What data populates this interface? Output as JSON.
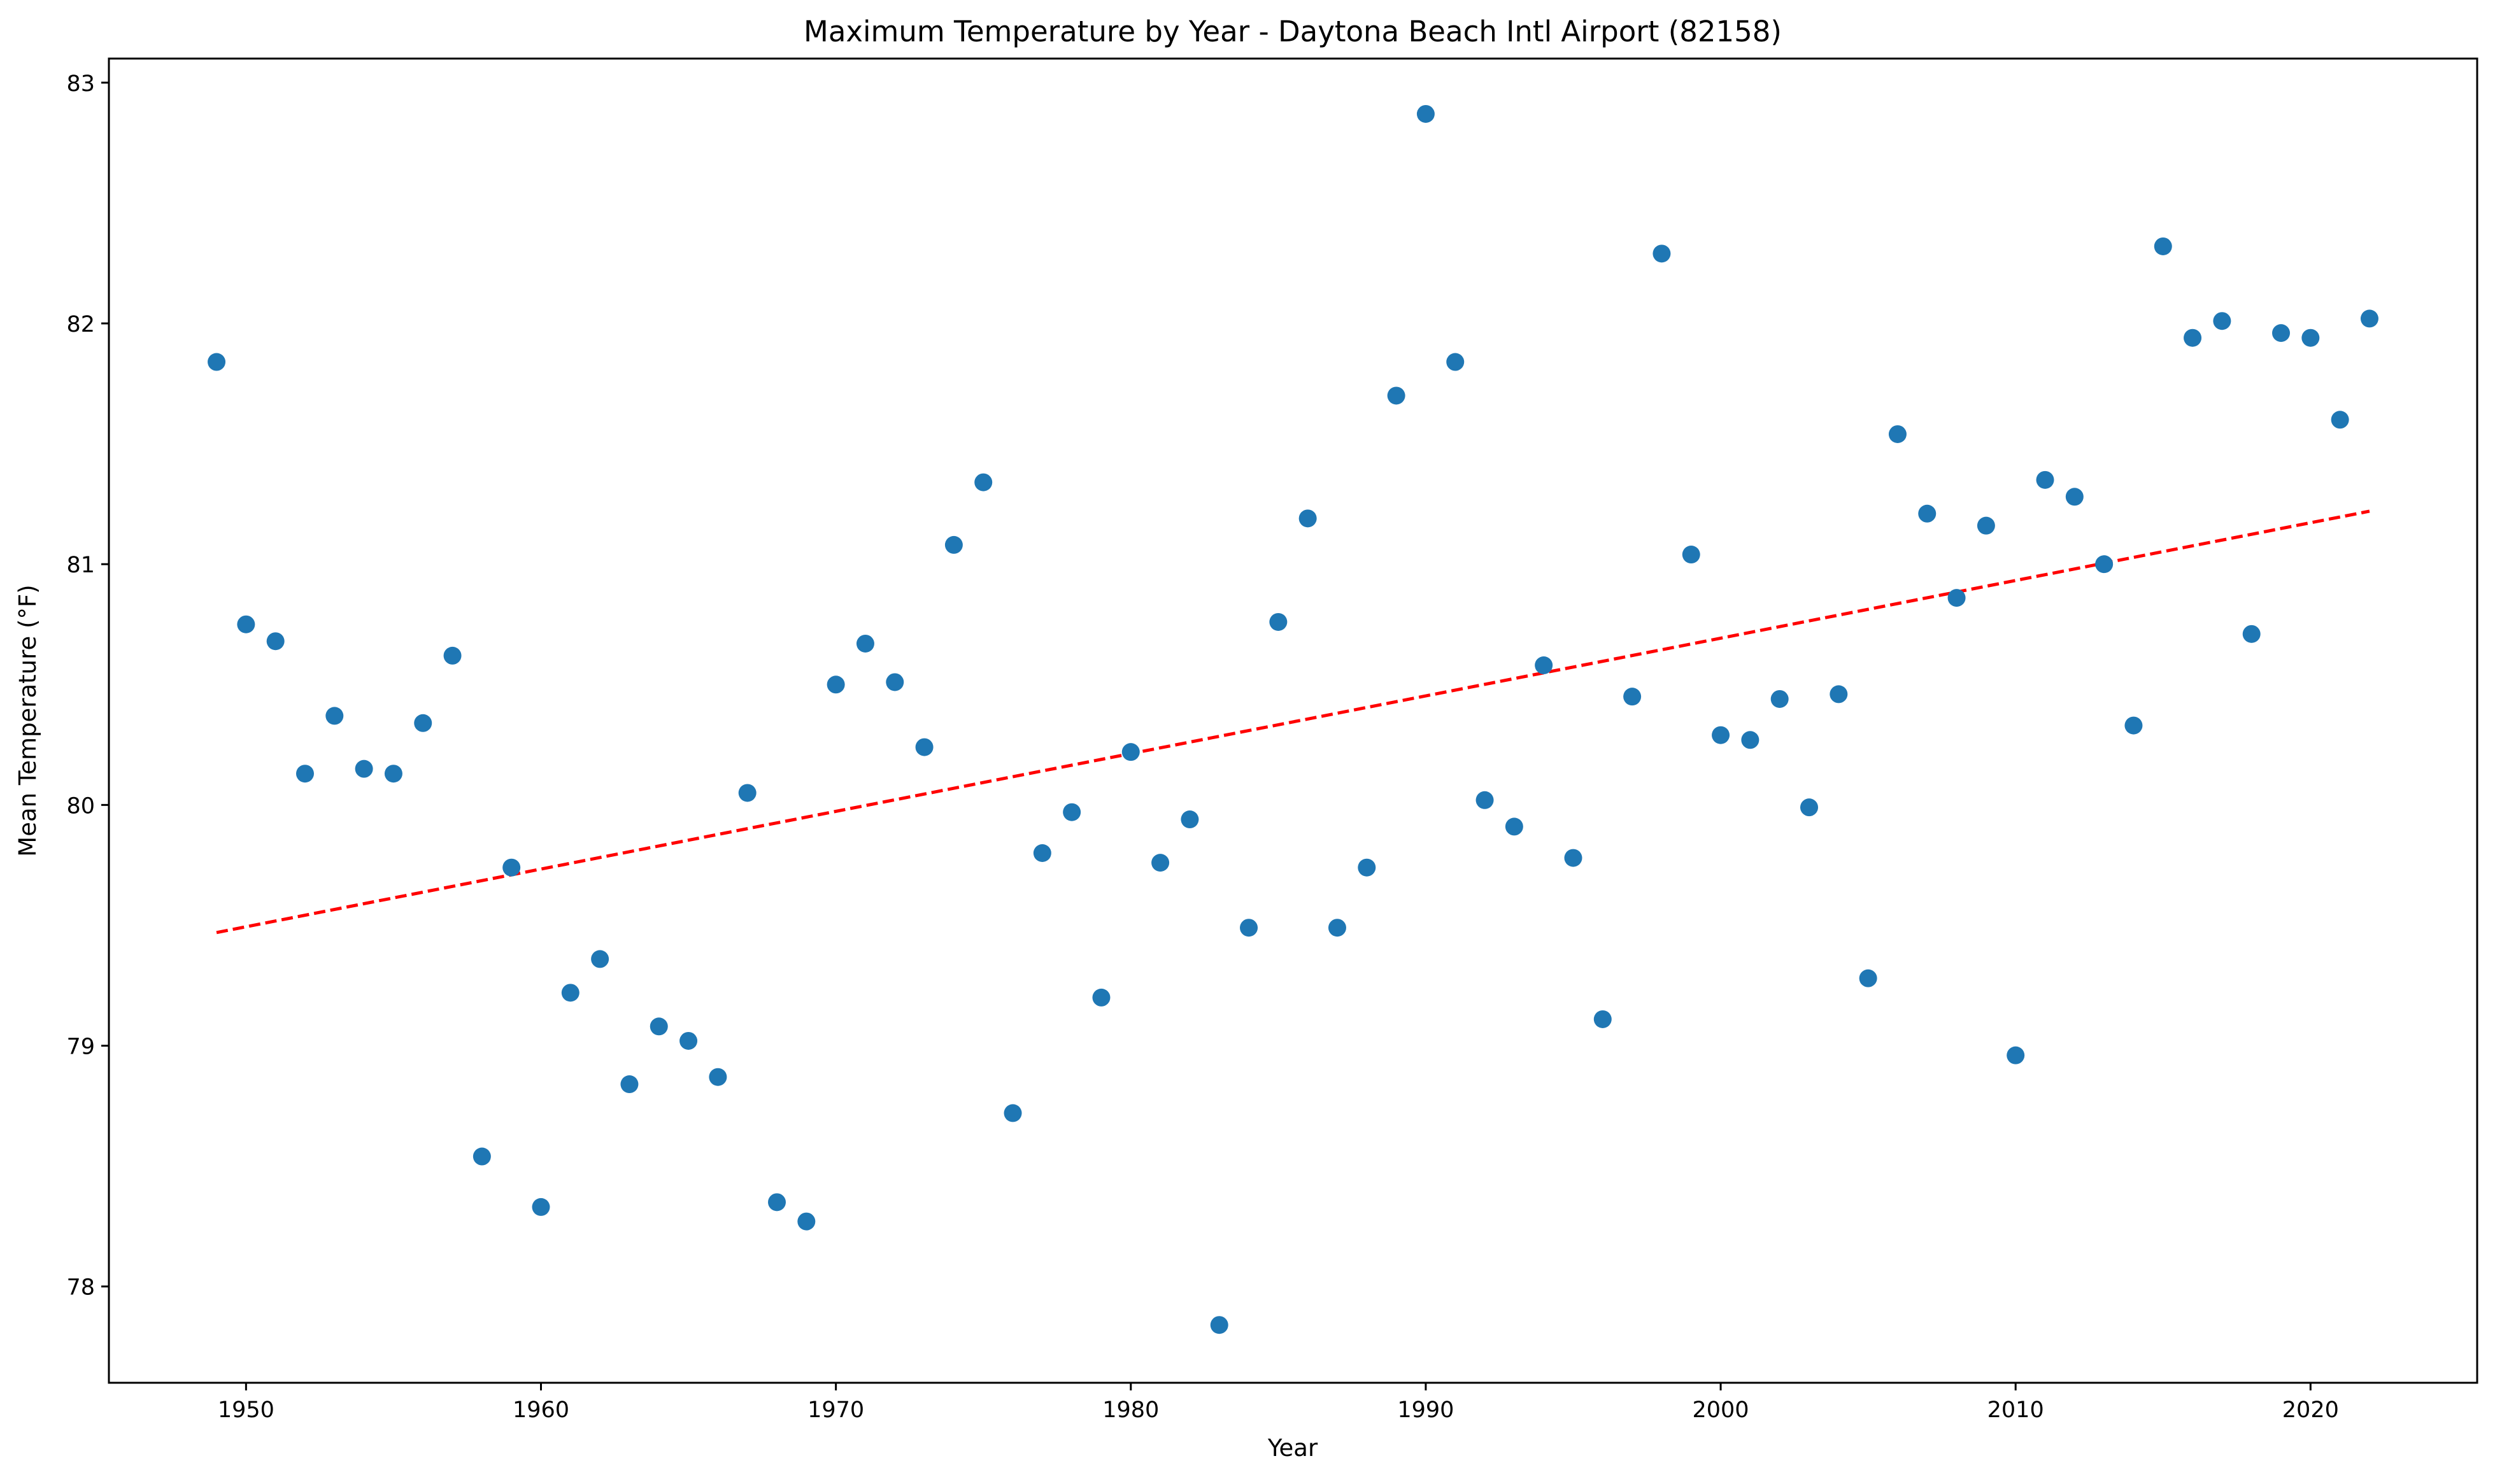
{
  "chart_data": {
    "type": "scatter",
    "title": "Maximum Temperature by Year - Daytona Beach Intl Airport (82158)",
    "xlabel": "Year",
    "ylabel": "Mean Temperature (°F)",
    "xlim": [
      1945.35,
      2025.65
    ],
    "ylim": [
      77.6,
      83.1
    ],
    "xticks": [
      1950,
      1960,
      1970,
      1980,
      1990,
      2000,
      2010,
      2020
    ],
    "yticks": [
      78,
      79,
      80,
      81,
      82,
      83
    ],
    "grid": false,
    "legend": "none",
    "point_color": "#1f77b4",
    "trend_color": "#ff0000",
    "series": [
      {
        "x": [
          1949,
          1950,
          1951,
          1952,
          1953,
          1954,
          1955,
          1956,
          1957,
          1958,
          1959,
          1960,
          1961,
          1962,
          1963,
          1964,
          1965,
          1966,
          1967,
          1968,
          1969,
          1970,
          1971,
          1972,
          1973,
          1974,
          1975,
          1976,
          1977,
          1978,
          1979,
          1980,
          1981,
          1982,
          1983,
          1984,
          1985,
          1986,
          1987,
          1988,
          1989,
          1990,
          1991,
          1992,
          1993,
          1994,
          1995,
          1996,
          1997,
          1998,
          1999,
          2000,
          2001,
          2002,
          2003,
          2004,
          2005,
          2006,
          2007,
          2008,
          2009,
          2010,
          2011,
          2012,
          2013,
          2014,
          2015,
          2016,
          2017,
          2018,
          2019,
          2020,
          2021,
          2022
        ],
        "y": [
          81.84,
          80.75,
          80.68,
          80.13,
          80.37,
          80.15,
          80.13,
          80.34,
          80.62,
          78.54,
          79.74,
          78.33,
          79.22,
          79.36,
          78.84,
          79.08,
          79.02,
          78.87,
          80.05,
          78.35,
          78.27,
          80.5,
          80.67,
          80.51,
          80.24,
          81.08,
          81.34,
          78.72,
          79.8,
          79.97,
          79.2,
          80.22,
          79.76,
          79.94,
          77.84,
          79.49,
          80.76,
          81.19,
          79.49,
          79.74,
          81.7,
          82.87,
          81.84,
          80.02,
          79.91,
          80.58,
          79.78,
          79.11,
          80.45,
          82.29,
          81.04,
          80.29,
          80.27,
          80.44,
          79.99,
          80.46,
          79.28,
          81.54,
          81.21,
          80.86,
          81.16,
          78.96,
          81.35,
          81.28,
          81.0,
          80.33,
          82.32,
          81.94,
          82.01,
          80.71,
          81.96,
          81.94,
          81.6,
          82.02
        ]
      }
    ],
    "trend_line": {
      "x": [
        1949,
        2022
      ],
      "y": [
        79.47,
        81.22
      ]
    }
  }
}
